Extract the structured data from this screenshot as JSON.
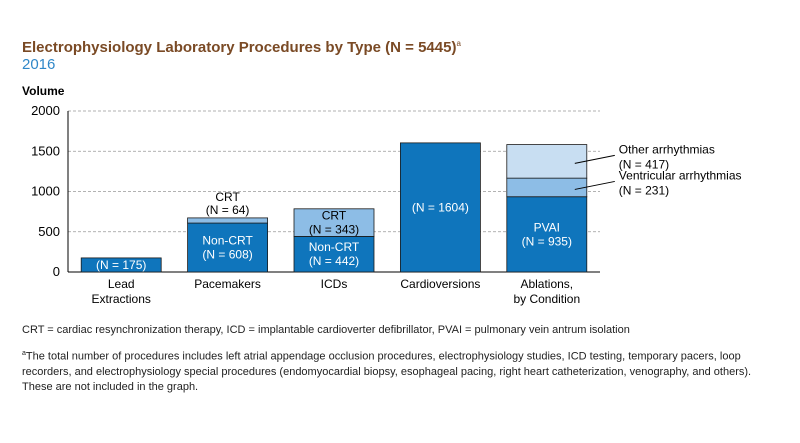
{
  "title": "Electrophysiology Laboratory Procedures by Type (N = 5445)",
  "title_sup": "a",
  "subtitle": "2016",
  "abbreviations": "CRT = cardiac resynchronization therapy, ICD = implantable cardioverter defibrillator, PVAI = pulmonary vein antrum isolation",
  "footnote_marker": "a",
  "footnote": "The total number of procedures includes left atrial appendage occlusion procedures, electrophysiology studies, ICD testing, temporary pacers, loop recorders, and electrophysiology special procedures (endomyocardial biopsy, esophageal pacing, right heart catheterization, venography, and others). These are not included in the graph.",
  "colors": {
    "dark": "#0f75bc",
    "mid": "#8dbde6",
    "light": "#c8def2",
    "grid": "#999999"
  },
  "chart_data": {
    "type": "bar",
    "stacked": true,
    "ylabel": "Volume",
    "ylim": [
      0,
      2000
    ],
    "yticks": [
      0,
      500,
      1000,
      1500,
      2000
    ],
    "grid": true,
    "categories": [
      {
        "lines": [
          "Lead",
          "Extractions"
        ],
        "segments": [
          {
            "value": 175,
            "color": "dark",
            "label": [
              "(N = 175)"
            ],
            "label_pos": "inside"
          }
        ]
      },
      {
        "lines": [
          "Pacemakers"
        ],
        "segments": [
          {
            "value": 608,
            "color": "dark",
            "label": [
              "Non-CRT",
              "(N = 608)"
            ],
            "label_pos": "inside"
          },
          {
            "value": 64,
            "color": "mid",
            "label": [
              "CRT",
              "(N = 64)"
            ],
            "label_pos": "above"
          }
        ]
      },
      {
        "lines": [
          "ICDs"
        ],
        "segments": [
          {
            "value": 442,
            "color": "dark",
            "label": [
              "Non-CRT",
              "(N = 442)"
            ],
            "label_pos": "inside"
          },
          {
            "value": 343,
            "color": "mid",
            "label": [
              "CRT",
              "(N = 343)"
            ],
            "label_pos": "inside"
          }
        ]
      },
      {
        "lines": [
          "Cardioversions"
        ],
        "segments": [
          {
            "value": 1604,
            "color": "dark",
            "label": [
              "(N = 1604)"
            ],
            "label_pos": "inside"
          }
        ]
      },
      {
        "lines": [
          "Ablations,",
          "by Condition"
        ],
        "segments": [
          {
            "value": 935,
            "color": "dark",
            "label": [
              "PVAI",
              "(N = 935)"
            ],
            "label_pos": "inside"
          },
          {
            "value": 231,
            "color": "mid",
            "label": [
              "Ventricular arrhythmias",
              "(N = 231)"
            ],
            "label_pos": "callout"
          },
          {
            "value": 417,
            "color": "light",
            "label": [
              "Other arrhythmias",
              "(N = 417)"
            ],
            "label_pos": "callout"
          }
        ]
      }
    ]
  }
}
